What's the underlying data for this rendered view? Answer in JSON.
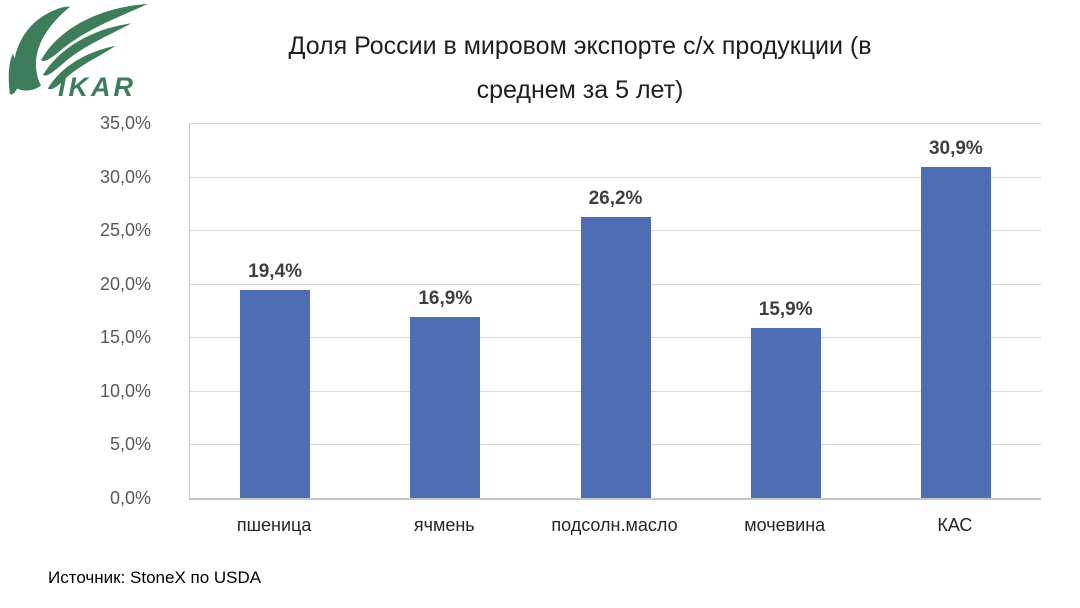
{
  "page": {
    "logo_text": "IKAR",
    "title_display": "Доля России в мировом экспорте с/х продукции (в\nсреднем за 5 лет)",
    "source": "Источник: StoneX по USDA"
  },
  "colors": {
    "bar": "#4F6DB5",
    "gridline": "#D9D9D9",
    "axis_line": "#C6C6C6",
    "tick_label": "#595959",
    "data_label": "#3F3F3F",
    "title_text": "#1F1F1F",
    "category_label": "#262626",
    "source_text": "#000000",
    "logo_green": "#3E7D5C",
    "background": "#FFFFFF"
  },
  "chart_data": {
    "type": "bar",
    "title": "Доля России в мировом экспорте с/х продукции (в среднем за 5 лет)",
    "categories": [
      "пшеница",
      "ячмень",
      "подсолн.масло",
      "мочевина",
      "КАС"
    ],
    "values": [
      19.4,
      16.9,
      26.2,
      15.9,
      30.9
    ],
    "value_labels": [
      "19,4%",
      "16,9%",
      "26,2%",
      "15,9%",
      "30,9%"
    ],
    "xlabel": "",
    "ylabel": "",
    "ylim": [
      0,
      35
    ],
    "ytick_values": [
      0,
      5,
      10,
      15,
      20,
      25,
      30,
      35
    ],
    "ytick_labels": [
      "0,0%",
      "5,0%",
      "10,0%",
      "15,0%",
      "20,0%",
      "25,0%",
      "30,0%",
      "35,0%"
    ],
    "grid": true,
    "legend": false,
    "bar_color": "#4F6DB5",
    "source": "Источник: StoneX по USDA"
  }
}
